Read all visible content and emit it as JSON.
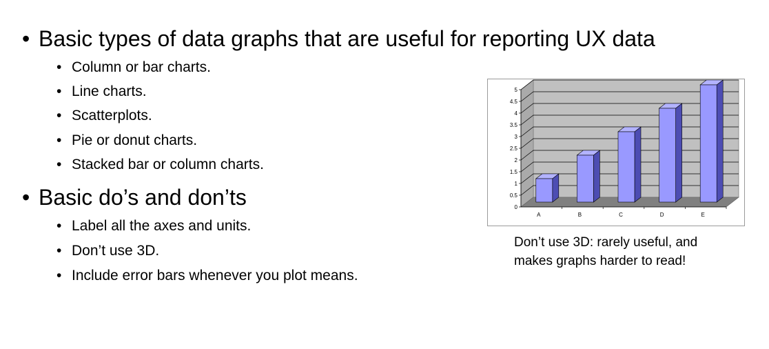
{
  "bullets": [
    {
      "text": "Basic types of data graphs that are useful for reporting UX data",
      "children": [
        "Column or bar charts.",
        "Line charts.",
        "Scatterplots.",
        "Pie or donut charts.",
        "Stacked bar or column charts."
      ]
    },
    {
      "text": "Basic do’s and don’ts",
      "children": [
        "Label all the axes and units.",
        "Don’t use 3D.",
        "Include error bars whenever you plot means."
      ]
    }
  ],
  "caption": {
    "line1": "Don’t use 3D: rarely useful, and",
    "line2": "makes graphs harder to read!"
  },
  "bullet_char": "•",
  "chart_data": {
    "type": "bar",
    "categories": [
      "A",
      "B",
      "C",
      "D",
      "E"
    ],
    "values": [
      1,
      2,
      3,
      4,
      5
    ],
    "yticks": [
      "0",
      "0.5",
      "1",
      "1.5",
      "2",
      "2.5",
      "3",
      "3.5",
      "4",
      "4.5",
      "5"
    ],
    "ylim": [
      0,
      5
    ],
    "grid": true,
    "style": "3d-column",
    "bar_color": "#9999ff",
    "bar_side_color": "#4d4db3",
    "bar_top_color": "#b3b3ff",
    "wall_color": "#c0c0c0",
    "floor_color": "#808080"
  }
}
